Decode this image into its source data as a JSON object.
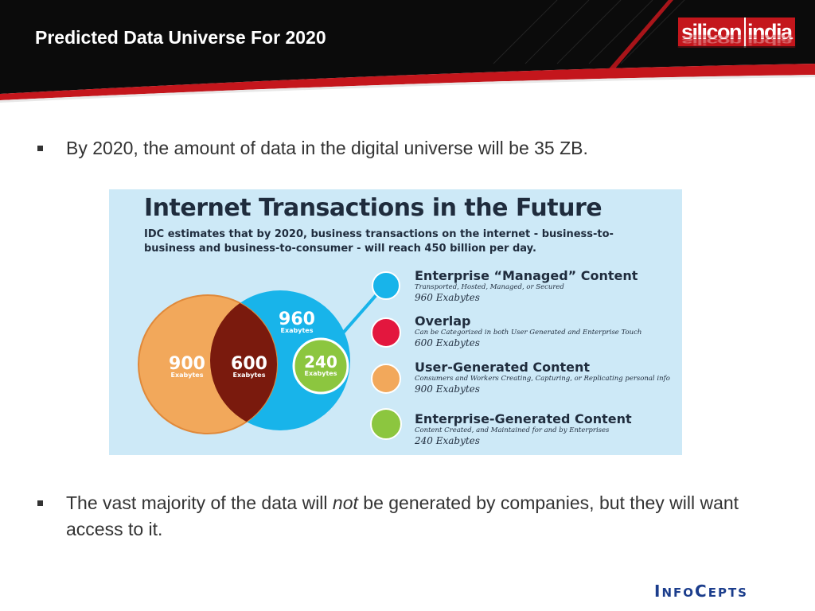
{
  "slide": {
    "title": "Predicted Data Universe For 2020"
  },
  "header_logo": {
    "part1": "silicon",
    "part2": "india"
  },
  "bullets": [
    {
      "text": "By 2020, the amount of data in the digital universe will be 35 ZB."
    },
    {
      "before": "The vast majority of the data will ",
      "emphasis": "not",
      "after": " be generated by companies, but they will want access to it."
    }
  ],
  "infographic": {
    "title": "Internet Transactions in the Future",
    "subtitle": "IDC estimates that by 2020, business transactions on the internet - business-to-business and business-to-consumer - will reach 450 billion per day.",
    "circles": {
      "user_generated": {
        "value": "900",
        "unit": "Exabytes",
        "color": "#f2a85b"
      },
      "overlap": {
        "value": "600",
        "unit": "Exabytes",
        "color": "#7a1a0d"
      },
      "managed": {
        "value": "960",
        "unit": "Exabytes",
        "color": "#18b4ea"
      },
      "enterprise_generated": {
        "value": "240",
        "unit": "Exabytes",
        "color": "#8cc63f"
      }
    },
    "legend": [
      {
        "title": "Enterprise “Managed” Content",
        "desc": "Transported, Hosted, Managed, or Secured",
        "amount": "960 Exabytes",
        "color": "#18b4ea"
      },
      {
        "title": "Overlap",
        "desc": "Can be Categorized in both User Generated and Enterprise Touch",
        "amount": "600 Exabytes",
        "color": "#e3173e"
      },
      {
        "title": "User-Generated Content",
        "desc": "Consumers and Workers Creating, Capturing, or Replicating personal info",
        "amount": "900 Exabytes",
        "color": "#f2a85b"
      },
      {
        "title": "Enterprise-Generated Content",
        "desc": "Content Created, and Maintained for and by Enterprises",
        "amount": "240 Exabytes",
        "color": "#8cc63f"
      }
    ]
  },
  "footer_logo": {
    "i": "I",
    "nfo": "NFO",
    "c": "C",
    "epts": "EPTS"
  },
  "colors": {
    "header_bg": "#0b0b0b",
    "header_red": "#c4161c",
    "infographic_bg": "#cde9f7"
  }
}
